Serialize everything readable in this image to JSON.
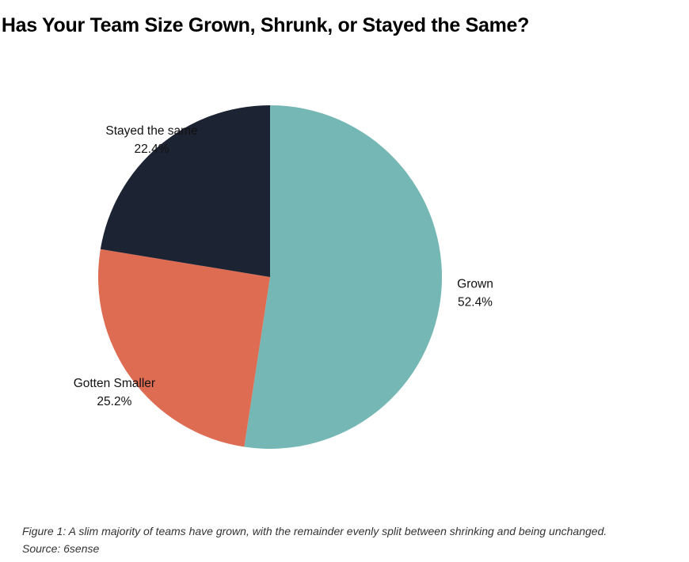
{
  "chart_data": {
    "type": "pie",
    "title": "Has Your Team Size Grown, Shrunk, or Stayed the Same?",
    "categories": [
      "Grown",
      "Gotten Smaller",
      "Stayed the same"
    ],
    "values": [
      52.4,
      25.2,
      22.4
    ],
    "value_labels": [
      "52.4%",
      "25.2%",
      "22.4%"
    ],
    "colors": [
      "#74b7b4",
      "#de6c53",
      "#1c2333"
    ],
    "start_angle": "12 o'clock",
    "direction": "clockwise",
    "legend": "none"
  },
  "caption": {
    "line1": "Figure 1: A slim majority of teams have grown, with the remainder evenly split between shrinking and being unchanged.",
    "line2": "Source: 6sense"
  }
}
